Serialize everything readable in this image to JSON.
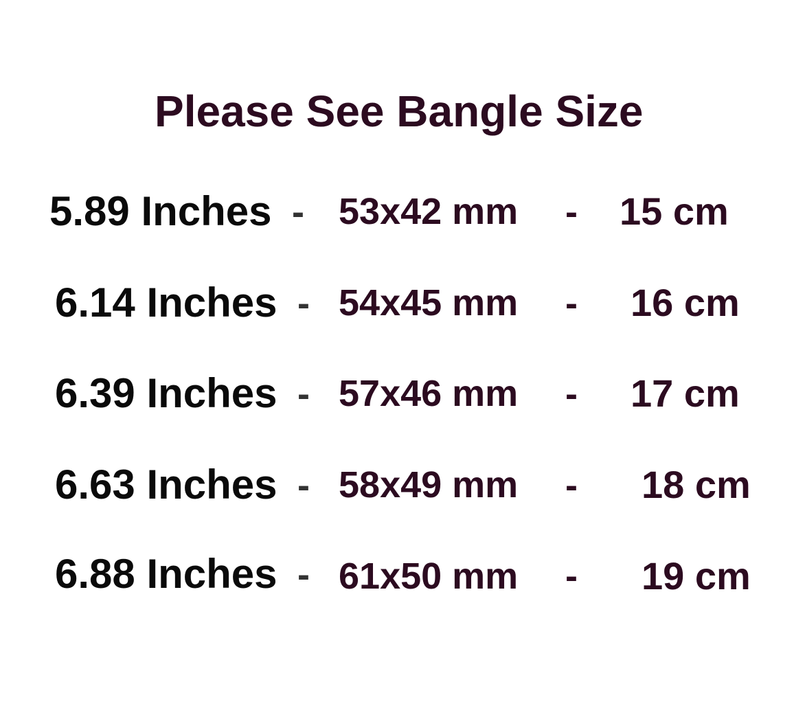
{
  "title": "Please See Bangle Size",
  "separator": "-",
  "rows": [
    {
      "inches": "5.89 Inches",
      "mm": "53x42 mm",
      "cm": "15 cm"
    },
    {
      "inches": "6.14 Inches",
      "mm": "54x45 mm",
      "cm": "16 cm"
    },
    {
      "inches": "6.39 Inches",
      "mm": "57x46 mm",
      "cm": "17 cm"
    },
    {
      "inches": "6.63 Inches",
      "mm": "58x49 mm",
      "cm": "18 cm"
    },
    {
      "inches": "6.88 Inches",
      "mm": "61x50 mm",
      "cm": "19 cm"
    }
  ],
  "colors": {
    "text_dark": "#0a0a0a",
    "text_maroon": "#2c0b20",
    "background": "#ffffff"
  }
}
